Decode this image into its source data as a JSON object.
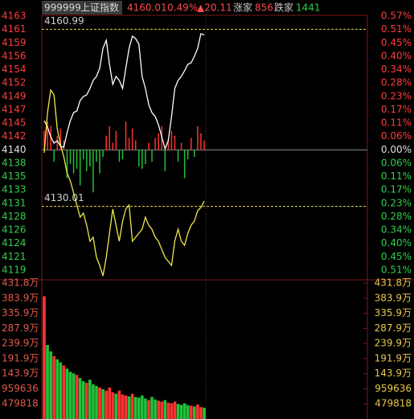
{
  "header": {
    "code": "999999",
    "name": "上证指数",
    "price": "4160.01",
    "change_pct": "0.49%",
    "change": "▲20.11",
    "up_label": "涨家",
    "up_count": "856",
    "down_label": "跌家",
    "down_count": "1441"
  },
  "chart_data": [
    {
      "type": "line",
      "ylim": [
        4117.57,
        4163.3
      ],
      "yticks": [
        {
          "value": 4163.3,
          "label": "4163"
        },
        {
          "value": 4160.96,
          "label": "4161"
        },
        {
          "value": 4158.62,
          "label": "4159"
        },
        {
          "value": 4156.28,
          "label": "4156"
        },
        {
          "value": 4153.94,
          "label": "4154"
        },
        {
          "value": 4151.6,
          "label": "4152"
        },
        {
          "value": 4149.26,
          "label": "4149"
        },
        {
          "value": 4146.92,
          "label": "4147"
        },
        {
          "value": 4144.58,
          "label": "4145"
        },
        {
          "value": 4142.24,
          "label": "4142"
        },
        {
          "value": 4139.9,
          "label": "4140"
        },
        {
          "value": 4137.56,
          "label": "4138"
        },
        {
          "value": 4135.22,
          "label": "4135"
        },
        {
          "value": 4132.88,
          "label": "4133"
        },
        {
          "value": 4130.54,
          "label": "4131"
        },
        {
          "value": 4128.2,
          "label": "4128"
        },
        {
          "value": 4125.86,
          "label": "4126"
        },
        {
          "value": 4123.52,
          "label": "4124"
        },
        {
          "value": 4121.18,
          "label": "4121"
        },
        {
          "value": 4118.84,
          "label": "4119"
        }
      ],
      "y2lim": [
        -0.54,
        0.566
      ],
      "y2ticks": [
        {
          "value": 0.566,
          "label": "0.57%"
        },
        {
          "value": 0.5094,
          "label": "0.51%"
        },
        {
          "value": 0.4528,
          "label": "0.45%"
        },
        {
          "value": 0.3962,
          "label": "0.40%"
        },
        {
          "value": 0.3396,
          "label": "0.34%"
        },
        {
          "value": 0.283,
          "label": "0.28%"
        },
        {
          "value": 0.2264,
          "label": "0.23%"
        },
        {
          "value": 0.1698,
          "label": "0.17%"
        },
        {
          "value": 0.1132,
          "label": "0.11%"
        },
        {
          "value": 0.0566,
          "label": "0.06%"
        },
        {
          "value": 0,
          "label": "0.00%"
        },
        {
          "value": -0.0566,
          "label": "0.06%"
        },
        {
          "value": -0.1132,
          "label": "0.11%"
        },
        {
          "value": -0.1698,
          "label": "0.17%"
        },
        {
          "value": -0.2264,
          "label": "0.23%"
        },
        {
          "value": -0.283,
          "label": "0.28%"
        },
        {
          "value": -0.3396,
          "label": "0.34%"
        },
        {
          "value": -0.3962,
          "label": "0.40%"
        },
        {
          "value": -0.4528,
          "label": "0.45%"
        },
        {
          "value": -0.5094,
          "label": "0.51%"
        }
      ],
      "series": [
        {
          "color": "#ffffff",
          "values": [
            4145.01,
            4143.88,
            4142.19,
            4141.07,
            4141.49,
            4140.51,
            4140.37,
            4142.9,
            4145.01,
            4146.42,
            4146.7,
            4148.53,
            4149.23,
            4149.51,
            4150.64,
            4152.04,
            4152.75,
            4154.15,
            4157.67,
            4159.08,
            4154.86,
            4151.34,
            4152.75,
            4152.04,
            4150.64,
            4154.15,
            4157.67,
            4159.78,
            4159.36,
            4158.38,
            4152.75,
            4150.64,
            4147.82,
            4146.42,
            4145.71,
            4144.31,
            4142.19,
            4140.08,
            4141.49,
            4145.71,
            4150.64,
            4152.04,
            4152.75,
            4153.73,
            4154.86,
            4155.14,
            4156.26,
            4157.67,
            4160.2,
            4160.01
          ]
        },
        {
          "color": "#f0e84a",
          "values": [
            4139.38,
            4146.42,
            4150.36,
            4149.51,
            4143.6,
            4140.79,
            4138.68,
            4135.86,
            4134.46,
            4132.35,
            4130.24,
            4128.12,
            4128.83,
            4126.72,
            4123.9,
            4124.61,
            4121.09,
            4119.68,
            4117.85,
            4121.09,
            4125.31,
            4129.53,
            4126.72,
            4123.9,
            4127.42,
            4129.53,
            4130.24,
            4123.9,
            4124.61,
            4125.31,
            4126.01,
            4128.12,
            4126.72,
            4126.01,
            4124.61,
            4123.9,
            4122.5,
            4121.09,
            4120.39,
            4119.68,
            4123.9,
            4126.01,
            4123.9,
            4123.2,
            4125.31,
            4126.72,
            4127.42,
            4129.25,
            4129.81,
            4130.94
          ]
        }
      ],
      "bars": {
        "axis": "y2",
        "up_color": "#ff3232",
        "down_color": "#1fc23a",
        "values": [
          0.08,
          0.12,
          0.1,
          -0.05,
          0.06,
          0.09,
          0.04,
          -0.12,
          -0.06,
          -0.1,
          -0.08,
          -0.15,
          -0.04,
          -0.09,
          -0.07,
          -0.18,
          -0.05,
          -0.1,
          -0.03,
          0.06,
          0.1,
          0.03,
          0.08,
          -0.05,
          -0.04,
          0.12,
          0.05,
          0.09,
          0.04,
          -0.07,
          -0.08,
          -0.06,
          0.03,
          -0.05,
          0.05,
          0.07,
          0.1,
          -0.09,
          0.04,
          0.08,
          0.06,
          -0.05,
          0.03,
          -0.12,
          -0.04,
          0.05,
          -0.03,
          0.1,
          0.07,
          0.04
        ]
      },
      "hlines": [
        4160.99,
        4130.01
      ],
      "hline_color": "#e8d84a"
    },
    {
      "type": "bar",
      "ylim": [
        0,
        4318362
      ],
      "yticks": [
        {
          "value": 4318362,
          "label": "431.8万"
        },
        {
          "value": 3838544,
          "label": "383.9万"
        },
        {
          "value": 3358726,
          "label": "335.9万"
        },
        {
          "value": 2878908,
          "label": "287.9万"
        },
        {
          "value": 2399090,
          "label": "239.9万"
        },
        {
          "value": 1919272,
          "label": "191.9万"
        },
        {
          "value": 1439454,
          "label": "143.9万"
        },
        959636,
        479818
      ],
      "values": [
        3900000,
        2350000,
        2150000,
        2000000,
        1900000,
        1800000,
        1700000,
        1600000,
        1500000,
        1450000,
        1400000,
        1300000,
        1200000,
        1150000,
        1250000,
        1100000,
        1050000,
        1000000,
        950000,
        900000,
        1000000,
        850000,
        800000,
        900000,
        780000,
        750000,
        720000,
        800000,
        700000,
        680000,
        750000,
        650000,
        600000,
        700000,
        620000,
        580000,
        550000,
        600000,
        520000,
        500000,
        550000,
        480000,
        450000,
        500000,
        440000,
        420000,
        400000,
        460000,
        380000,
        360000
      ],
      "colors": [
        "#ff3232",
        "#1fc23a",
        "#1fc23a",
        "#ff3232",
        "#1fc23a",
        "#1fc23a",
        "#ff3232",
        "#1fc23a",
        "#1fc23a",
        "#1fc23a",
        "#ff3232",
        "#1fc23a",
        "#1fc23a",
        "#ff3232",
        "#1fc23a",
        "#1fc23a",
        "#1fc23a",
        "#ff3232",
        "#1fc23a",
        "#ff3232",
        "#ff3232",
        "#ff3232",
        "#1fc23a",
        "#ff3232",
        "#ff3232",
        "#ff3232",
        "#1fc23a",
        "#ff3232",
        "#1fc23a",
        "#1fc23a",
        "#1fc23a",
        "#1fc23a",
        "#ff3232",
        "#1fc23a",
        "#1fc23a",
        "#ff3232",
        "#ff3232",
        "#1fc23a",
        "#ff3232",
        "#ff3232",
        "#ff3232",
        "#1fc23a",
        "#1fc23a",
        "#1fc23a",
        "#1fc23a",
        "#ff3232",
        "#1fc23a",
        "#ff3232",
        "#ff3232",
        "#1fc23a"
      ]
    }
  ]
}
